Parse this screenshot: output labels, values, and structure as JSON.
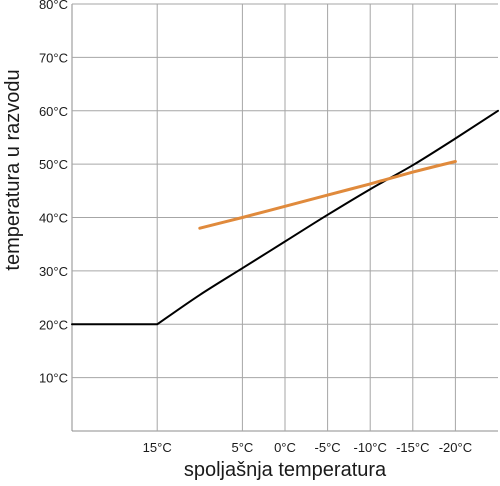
{
  "chart_data": {
    "type": "line",
    "title": "",
    "xlabel": "spoljašnja temperatura",
    "ylabel": "temperatura u razvodu",
    "x_reversed": true,
    "x_ticks": [
      15,
      5,
      0,
      -5,
      -10,
      -15,
      -20
    ],
    "x_tick_labels": [
      "15°C",
      "5°C",
      "0°C",
      "-5°C",
      "-10°C",
      "-15°C",
      "-20°C"
    ],
    "xlim": [
      25,
      -25
    ],
    "y_ticks": [
      10,
      20,
      30,
      40,
      50,
      60,
      70,
      80
    ],
    "y_tick_labels": [
      "10°C",
      "20°C",
      "30°C",
      "40°C",
      "50°C",
      "60°C",
      "70°C",
      "80°C"
    ],
    "ylim": [
      0,
      80
    ],
    "grid": true,
    "legend": false,
    "series": [
      {
        "color": "#000000",
        "x": [
          25,
          15,
          10,
          5,
          0,
          -5,
          -10,
          -15,
          -20,
          -25
        ],
        "y": [
          20,
          20,
          25.5,
          30.5,
          35.5,
          40.5,
          45.3,
          49.8,
          54.8,
          60
        ]
      },
      {
        "color": "#E08A3C",
        "x": [
          10,
          5,
          0,
          -5,
          -10,
          -15,
          -20
        ],
        "y": [
          38,
          40,
          42.1,
          44.2,
          46.3,
          48.5,
          50.5
        ]
      }
    ]
  }
}
